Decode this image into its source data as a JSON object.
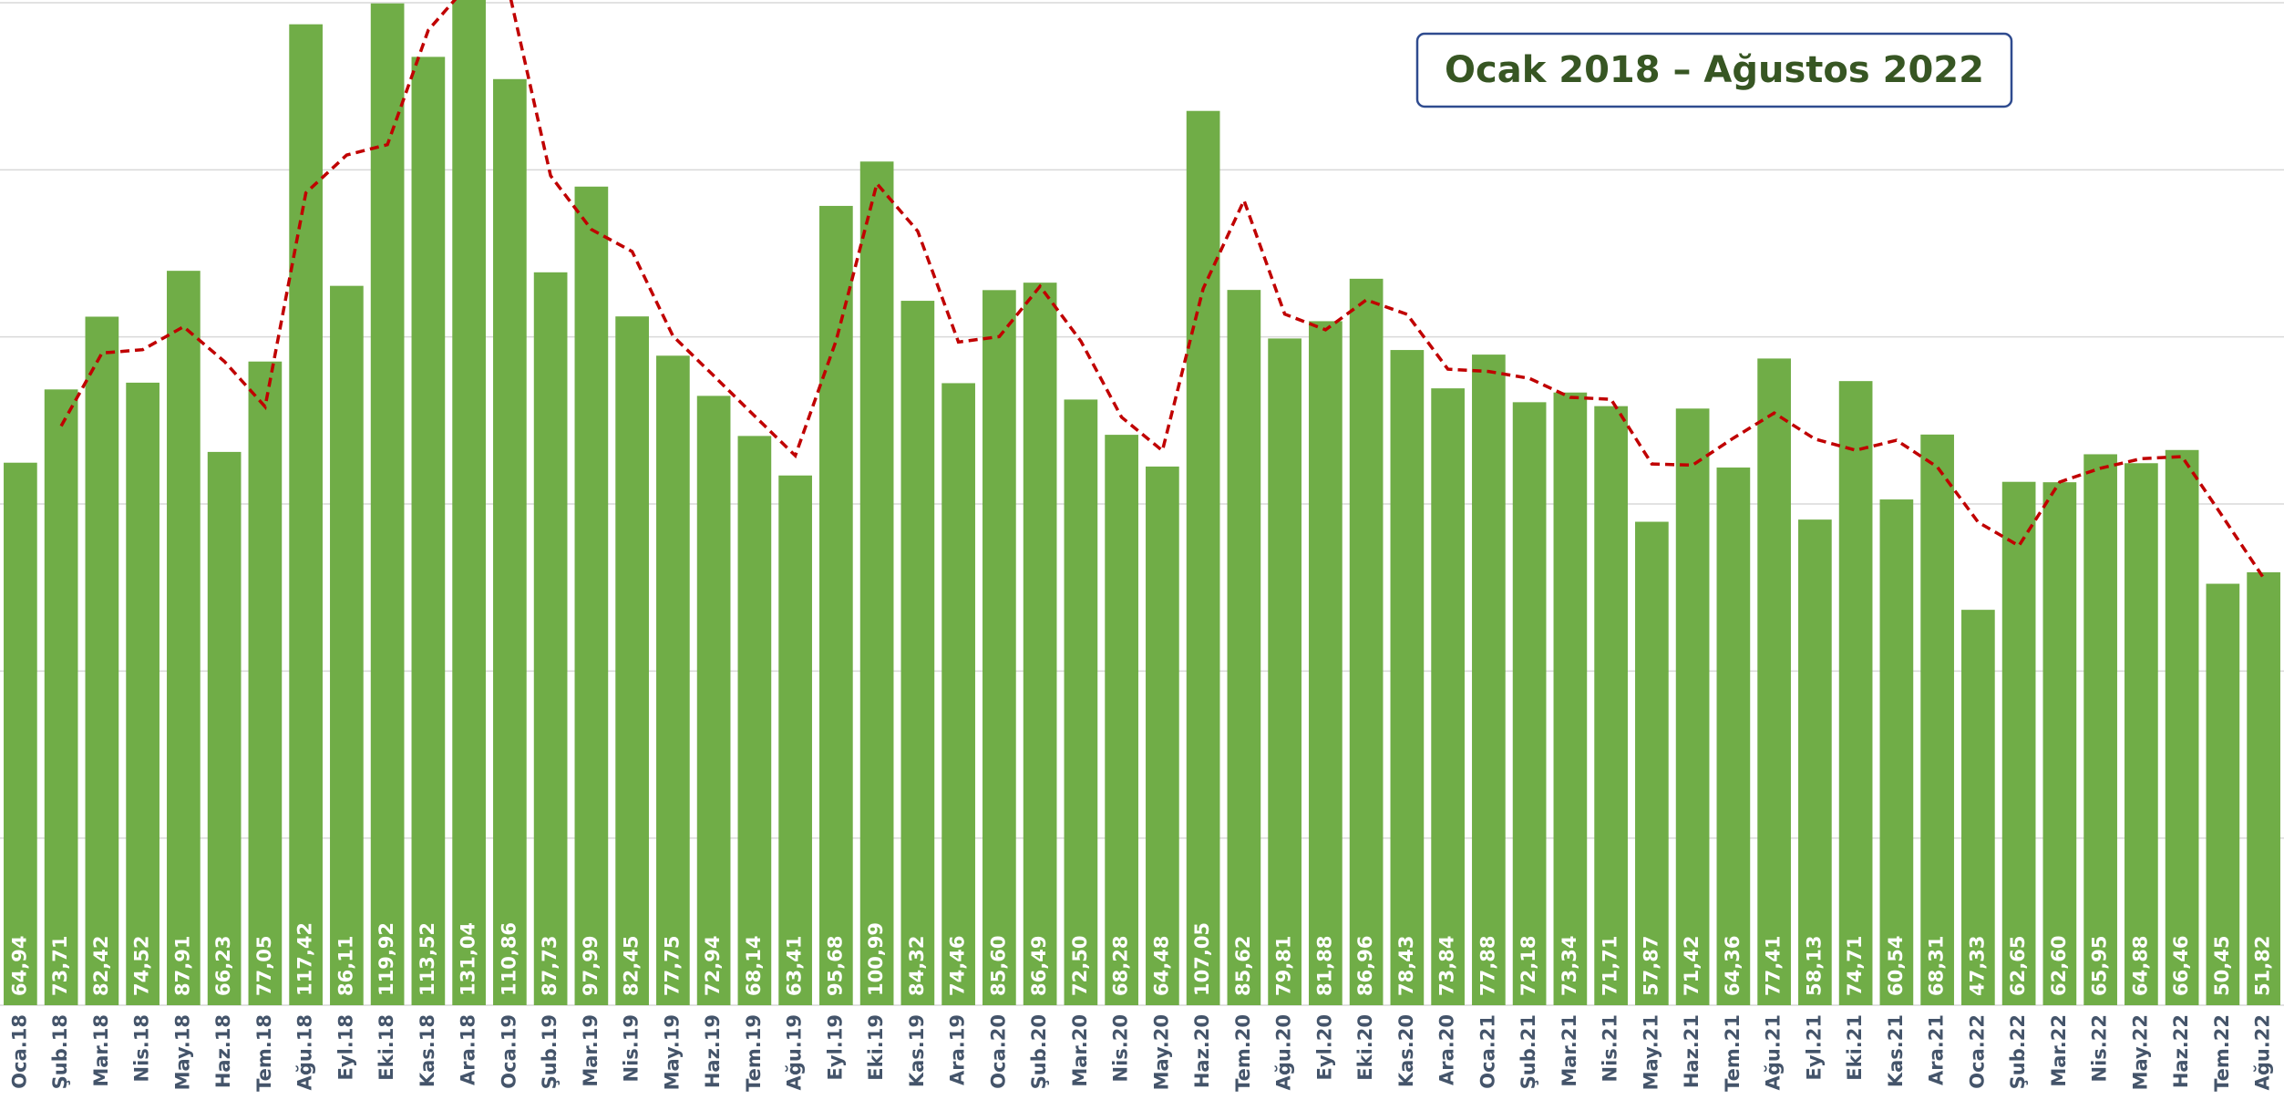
{
  "chart_data": {
    "type": "bar",
    "title": "Ocak 2018 – Ağustos 2022",
    "categories": [
      "Oca.18",
      "Şub.18",
      "Mar.18",
      "Nis.18",
      "May.18",
      "Haz.18",
      "Tem.18",
      "Ağu.18",
      "Eyl.18",
      "Eki.18",
      "Kas.18",
      "Ara.18",
      "Oca.19",
      "Şub.19",
      "Mar.19",
      "Nis.19",
      "May.19",
      "Haz.19",
      "Tem.19",
      "Ağu.19",
      "Eyl.19",
      "Eki.19",
      "Kas.19",
      "Ara.19",
      "Oca.20",
      "Şub.20",
      "Mar.20",
      "Nis.20",
      "May.20",
      "Haz.20",
      "Tem.20",
      "Ağu.20",
      "Eyl.20",
      "Eki.20",
      "Kas.20",
      "Ara.20",
      "Oca.21",
      "Şub.21",
      "Mar.21",
      "Nis.21",
      "May.21",
      "Haz.21",
      "Tem.21",
      "Ağu.21",
      "Eyl.21",
      "Eki.21",
      "Kas.21",
      "Ara.21",
      "Oca.22",
      "Şub.22",
      "Mar.22",
      "Nis.22",
      "May.22",
      "Haz.22",
      "Tem.22",
      "Ağu.22"
    ],
    "series": [
      {
        "color": "#70ad47",
        "values": [
          64.94,
          73.71,
          82.42,
          74.52,
          87.91,
          66.23,
          77.05,
          117.42,
          86.11,
          119.92,
          113.52,
          131.04,
          110.86,
          87.73,
          97.99,
          82.45,
          77.75,
          72.94,
          68.14,
          63.41,
          95.68,
          100.99,
          84.32,
          74.46,
          85.6,
          86.49,
          72.5,
          68.28,
          64.48,
          107.05,
          85.62,
          79.81,
          81.88,
          86.96,
          78.43,
          73.84,
          77.88,
          72.18,
          73.34,
          71.71,
          57.87,
          71.42,
          64.36,
          77.41,
          58.13,
          74.71,
          60.54,
          68.31,
          47.33,
          62.65,
          62.6,
          65.95,
          64.88,
          66.46,
          50.45,
          51.82
        ],
        "value_labels": [
          "64,94",
          "73,71",
          "82,42",
          "74,52",
          "87,91",
          "66,23",
          "77,05",
          "117,42",
          "86,11",
          "119,92",
          "113,52",
          "131,04",
          "110,86",
          "87,73",
          "97,99",
          "82,45",
          "77,75",
          "72,94",
          "68,14",
          "63,41",
          "95,68",
          "100,99",
          "84,32",
          "74,46",
          "85,60",
          "86,49",
          "72,50",
          "68,28",
          "64,48",
          "107,05",
          "85,62",
          "79,81",
          "81,88",
          "86,96",
          "78,43",
          "73,84",
          "77,88",
          "72,18",
          "73,34",
          "71,71",
          "57,87",
          "71,42",
          "64,36",
          "77,41",
          "58,13",
          "74,71",
          "60,54",
          "68,31",
          "47,33",
          "62,65",
          "62,60",
          "65,95",
          "64,88",
          "66,46",
          "50,45",
          "51,82"
        ]
      },
      {
        "type": "line",
        "color": "#c00000",
        "dashed": true,
        "values": [
          null,
          69.33,
          78.07,
          78.47,
          81.22,
          77.07,
          71.64,
          97.24,
          101.77,
          103.02,
          116.72,
          122.28,
          120.95,
          99.3,
          92.86,
          90.22,
          80.1,
          75.35,
          70.54,
          65.78,
          79.55,
          98.34,
          92.66,
          79.39,
          80.03,
          86.05,
          79.5,
          70.39,
          66.38,
          85.77,
          96.34,
          82.72,
          80.85,
          84.42,
          82.7,
          76.14,
          75.86,
          75.03,
          72.76,
          72.53,
          64.79,
          64.65,
          67.89,
          70.89,
          67.77,
          66.42,
          67.63,
          64.43,
          57.82,
          54.99,
          62.63,
          64.28,
          65.42,
          65.67,
          58.46,
          51.14
        ]
      }
    ],
    "ylim": [
      0,
      120
    ],
    "yticks": [
      0,
      20,
      40,
      60,
      80,
      100,
      120
    ],
    "grid": true
  }
}
